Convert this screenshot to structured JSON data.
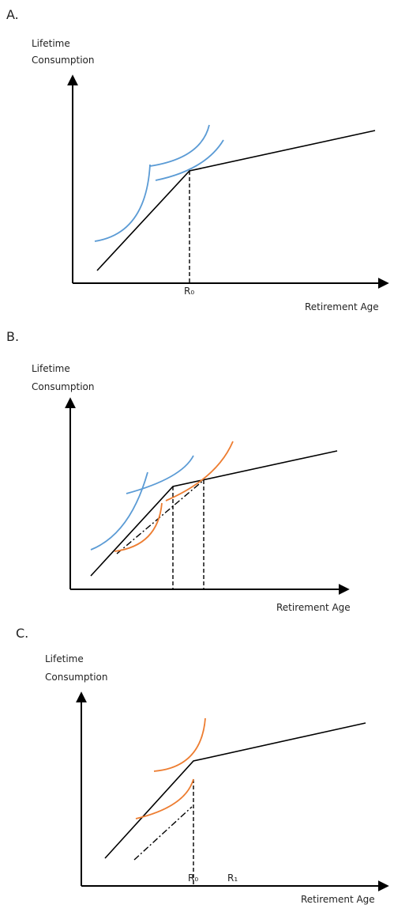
{
  "panels": [
    {
      "label": "A.",
      "y_label": [
        "Lifetime",
        "Consumption"
      ],
      "x_label": "Retirement Age",
      "ticks": [
        "R₀"
      ]
    },
    {
      "label": "B.",
      "y_label": [
        "Lifetime",
        "Consumption"
      ],
      "x_label": "Retirement Age"
    },
    {
      "label": "C.",
      "y_label": [
        "Lifetime",
        "Consumption"
      ],
      "x_label": "Retirement Age",
      "ticks": [
        "R₀",
        "R₁"
      ]
    }
  ]
}
